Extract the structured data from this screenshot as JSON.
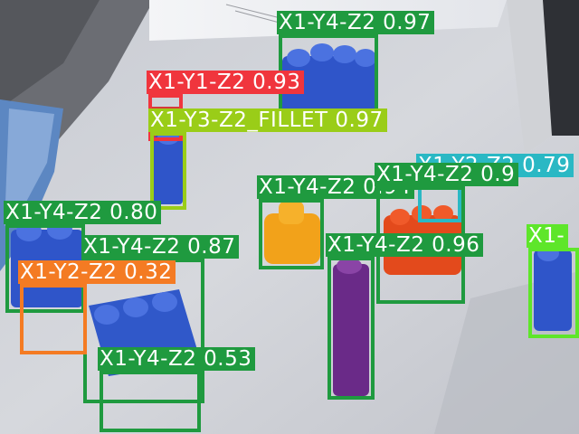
{
  "detections": [
    {
      "label": "X1-Y4-Z2",
      "score": "0.97",
      "color": "#1f9a3f"
    },
    {
      "label": "X1-Y1-Z2",
      "score": "0.93",
      "color": "#f0353d"
    },
    {
      "label": "X1-Y3-Z2_FILLET",
      "score": "0.97",
      "color": "#9acd18"
    },
    {
      "label": "X1-Y2-Z2",
      "score": "0.79",
      "color": "#2ab8c4"
    },
    {
      "label": "X1-Y4-Z2",
      "score": "0.94",
      "color": "#1f9a3f"
    },
    {
      "label": "X1-Y4-Z2",
      "score": "0.9",
      "color": "#1f9a3f"
    },
    {
      "label": "X1-Y4-Z2",
      "score": "0.80",
      "color": "#1f9a3f"
    },
    {
      "label": "X1-Y4-Z2",
      "score": "0.87",
      "color": "#1f9a3f"
    },
    {
      "label": "X1-Y2-Z2",
      "score": "0.32",
      "color": "#f47b23"
    },
    {
      "label": "X1-Y4-Z2",
      "score": "0.96",
      "color": "#1f9a3f"
    },
    {
      "label": "X1-Y4-Z2",
      "score": "0.53",
      "color": "#1f9a3f"
    },
    {
      "label": "X1-",
      "score": "",
      "color": "#5ee62a"
    }
  ]
}
